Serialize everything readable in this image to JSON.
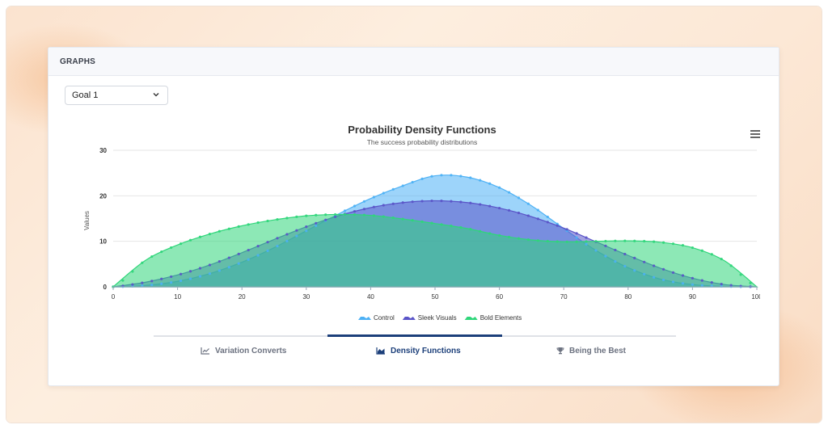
{
  "panel": {
    "title": "GRAPHS"
  },
  "goal_select": {
    "value": "Goal 1"
  },
  "chart_data": {
    "type": "area",
    "title": "Probability Density Functions",
    "subtitle": "The success probability distributions",
    "ylabel": "Values",
    "xlabel": "",
    "xlim": [
      0,
      100
    ],
    "ylim": [
      0,
      30
    ],
    "x_ticks": [
      0,
      10,
      20,
      30,
      40,
      50,
      60,
      70,
      80,
      90,
      100
    ],
    "y_ticks": [
      0,
      10,
      20,
      30
    ],
    "legend_position": "bottom",
    "grid": true,
    "x": [
      0,
      5,
      10,
      15,
      20,
      25,
      30,
      35,
      40,
      45,
      50,
      55,
      60,
      65,
      70,
      75,
      80,
      85,
      90,
      95,
      100
    ],
    "series": [
      {
        "name": "Control",
        "color": "#4db1f5",
        "values": [
          0,
          0.3,
          1.2,
          2.9,
          5.4,
          8.6,
          12.3,
          16,
          19.4,
          22.2,
          24.4,
          24.1,
          21.8,
          17.8,
          12.8,
          8,
          4.2,
          1.7,
          0.5,
          0.1,
          0
        ]
      },
      {
        "name": "Sleek Visuals",
        "color": "#5a54c8",
        "values": [
          0,
          1,
          2.6,
          4.8,
          7.5,
          10.4,
          13.2,
          15.6,
          17.4,
          18.5,
          18.9,
          18.5,
          17.3,
          15.4,
          12.9,
          9.9,
          6.9,
          4.1,
          1.9,
          0.5,
          0
        ]
      },
      {
        "name": "Bold Elements",
        "color": "#2fd67a",
        "values": [
          0,
          5.8,
          9.2,
          11.6,
          13.4,
          14.7,
          15.6,
          15.9,
          15.7,
          14.9,
          13.9,
          12.8,
          11.3,
          10.3,
          9.9,
          10,
          10.1,
          9.8,
          8.6,
          5.7,
          0
        ]
      }
    ]
  },
  "chart_menu": {
    "icon": "hamburger-menu-icon"
  },
  "tabs": [
    {
      "label": "Variation Converts",
      "icon": "line-chart-icon",
      "active": false
    },
    {
      "label": "Density Functions",
      "icon": "area-chart-icon",
      "active": true
    },
    {
      "label": "Being the Best",
      "icon": "trophy-icon",
      "active": false
    }
  ]
}
